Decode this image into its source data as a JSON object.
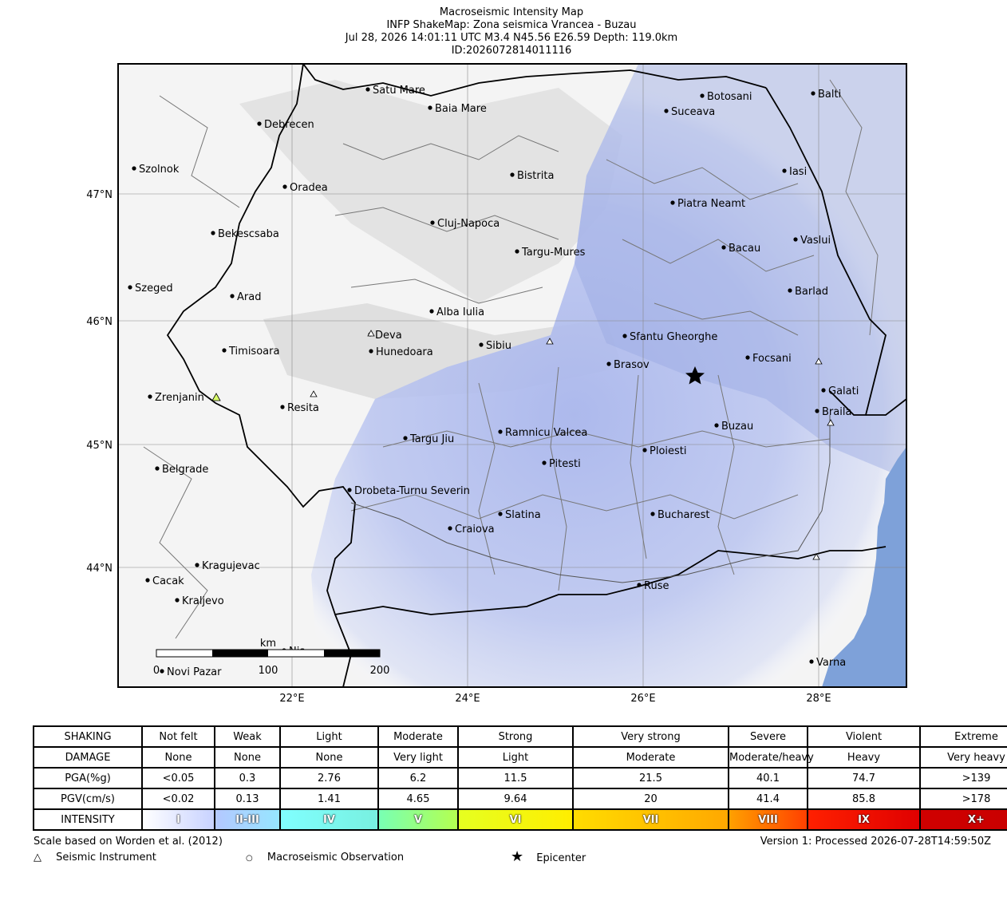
{
  "header": {
    "line1": "Macroseismic Intensity Map",
    "line2": "INFP ShakeMap: Zona seismica Vrancea - Buzau",
    "line3": "Jul 28, 2026 14:01:11 UTC M3.4 N45.56 E26.59 Depth: 119.0km",
    "line4": "ID:2026072814011116"
  },
  "map": {
    "lat_ticks": [
      "47°N",
      "46°N",
      "45°N",
      "44°N"
    ],
    "lon_ticks": [
      "22°E",
      "24°E",
      "26°E",
      "28°E"
    ],
    "scalebar": {
      "unit": "km",
      "labels": [
        "0",
        "100",
        "200"
      ]
    },
    "epicenter": {
      "lat": 45.56,
      "lon": 26.59
    },
    "cities": [
      {
        "name": "Satu Mare"
      },
      {
        "name": "Baia Mare"
      },
      {
        "name": "Debrecen"
      },
      {
        "name": "Botosani"
      },
      {
        "name": "Balti"
      },
      {
        "name": "Suceava"
      },
      {
        "name": "Szolnok"
      },
      {
        "name": "Bistrita"
      },
      {
        "name": "Iasi"
      },
      {
        "name": "Oradea"
      },
      {
        "name": "Piatra Neamt"
      },
      {
        "name": "Cluj-Napoca"
      },
      {
        "name": "Bekescsaba"
      },
      {
        "name": "Vaslui"
      },
      {
        "name": "Targu-Mures"
      },
      {
        "name": "Bacau"
      },
      {
        "name": "Szeged"
      },
      {
        "name": "Barlad"
      },
      {
        "name": "Arad"
      },
      {
        "name": "Alba Iulia"
      },
      {
        "name": "Deva"
      },
      {
        "name": "Sfantu Gheorghe"
      },
      {
        "name": "Timisoara"
      },
      {
        "name": "Sibiu"
      },
      {
        "name": "Hunedoara"
      },
      {
        "name": "Focsani"
      },
      {
        "name": "Brasov"
      },
      {
        "name": "Zrenjanin"
      },
      {
        "name": "Galati"
      },
      {
        "name": "Resita"
      },
      {
        "name": "Braila"
      },
      {
        "name": "Buzau"
      },
      {
        "name": "Ramnicu Valcea"
      },
      {
        "name": "Targu Jiu"
      },
      {
        "name": "Ploiesti"
      },
      {
        "name": "Belgrade"
      },
      {
        "name": "Pitesti"
      },
      {
        "name": "Drobeta-Turnu Severin"
      },
      {
        "name": "Slatina"
      },
      {
        "name": "Bucharest"
      },
      {
        "name": "Craiova"
      },
      {
        "name": "Kragujevac"
      },
      {
        "name": "Cacak"
      },
      {
        "name": "Kraljevo"
      },
      {
        "name": "Ruse"
      },
      {
        "name": "Varna"
      },
      {
        "name": "Nis"
      },
      {
        "name": "Novi Pazar"
      }
    ]
  },
  "legend": {
    "rows": [
      {
        "head": "SHAKING",
        "cells": [
          "Not felt",
          "Weak",
          "Light",
          "Moderate",
          "Strong",
          "Very strong",
          "Severe",
          "Violent",
          "Extreme"
        ]
      },
      {
        "head": "DAMAGE",
        "cells": [
          "None",
          "None",
          "None",
          "Very light",
          "Light",
          "Moderate",
          "Moderate/heavy",
          "Heavy",
          "Very heavy"
        ]
      },
      {
        "head": "PGA(%g)",
        "cells": [
          "<0.05",
          "0.3",
          "2.76",
          "6.2",
          "11.5",
          "21.5",
          "40.1",
          "74.7",
          ">139"
        ]
      },
      {
        "head": "PGV(cm/s)",
        "cells": [
          "<0.02",
          "0.13",
          "1.41",
          "4.65",
          "9.64",
          "20",
          "41.4",
          "85.8",
          ">178"
        ]
      }
    ],
    "intensity": {
      "head": "INTENSITY",
      "cells": [
        "I",
        "II-III",
        "IV",
        "V",
        "VI",
        "VII",
        "VIII",
        "IX",
        "X+"
      ],
      "colors": [
        [
          "#ffffff",
          "#c8d2ff"
        ],
        [
          "#b4c8ff",
          "#96e6ff"
        ],
        [
          "#80ffff",
          "#78f0e0"
        ],
        [
          "#78ffb4",
          "#b4ff50"
        ],
        [
          "#e6ff20",
          "#ffee00"
        ],
        [
          "#ffdc00",
          "#ffa800"
        ],
        [
          "#ffa000",
          "#ff4000"
        ],
        [
          "#ff2000",
          "#e00000"
        ],
        [
          "#d00000",
          "#c80000"
        ]
      ]
    }
  },
  "footer": {
    "scale_note": "Scale based on Worden et al. (2012)",
    "version": "Version 1: Processed 2026-07-28T14:59:50Z",
    "key_instrument": "Seismic Instrument",
    "key_observation": "Macroseismic Observation",
    "key_epicenter": "Epicenter"
  },
  "colors": {
    "water": "#7ea1d9",
    "intensity_blue": "#8ea0e0"
  }
}
